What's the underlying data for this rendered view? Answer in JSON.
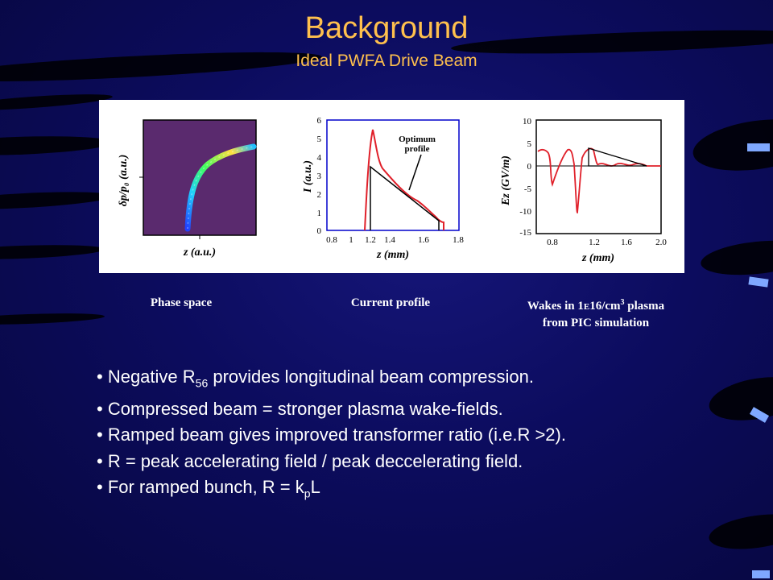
{
  "slide": {
    "title": "Background",
    "subtitle": "Ideal PWFA Drive Beam"
  },
  "figure": {
    "phase_space": {
      "xlabel": "z (a.u.)",
      "ylabel": "δp/p₀ (a.u.)"
    },
    "current_profile": {
      "xlabel": "z (mm)",
      "ylabel": "I (a.u.)",
      "annotation": [
        "Optimum",
        "profile"
      ],
      "y_ticks": [
        "0",
        "1",
        "2",
        "3",
        "4",
        "5",
        "6"
      ],
      "x_ticks": [
        "0.8",
        "1",
        "1.2",
        "1.4",
        "1.6",
        "1.8"
      ]
    },
    "wakes": {
      "xlabel": "z (mm)",
      "ylabel": "Ez (GV/m)",
      "y_ticks": [
        "10",
        "5",
        "0",
        "-5",
        "-10",
        "-15"
      ],
      "x_ticks": [
        "0.8",
        "1.2",
        "1.6",
        "2.0"
      ]
    }
  },
  "captions": {
    "phase_space": "Phase space",
    "current_profile": "Current profile",
    "wakes_line1_a": "Wakes in 1",
    "wakes_line1_e": "E",
    "wakes_line1_b": "16/cm",
    "wakes_line1_sup": "3",
    "wakes_line1_c": " plasma",
    "wakes_line2": "from PIC simulation"
  },
  "bullets": {
    "b1_pre": "• Negative R",
    "b1_sub": "56",
    "b1_post": " provides longitudinal beam compression.",
    "b2": "• Compressed beam = stronger plasma wake-fields.",
    "b3": "• Ramped beam gives improved transformer ratio (i.e.R >2).",
    "b4": "• R = peak accelerating field / peak deccelerating field.",
    "b5_pre": "• For ramped bunch, R = k",
    "b5_sub": "p",
    "b5_post": "L"
  },
  "colors": {
    "title": "#ffc04d",
    "background": "#0c0c5e",
    "plot_red": "#e0202a",
    "phase_bg": "#5a2a6e"
  }
}
